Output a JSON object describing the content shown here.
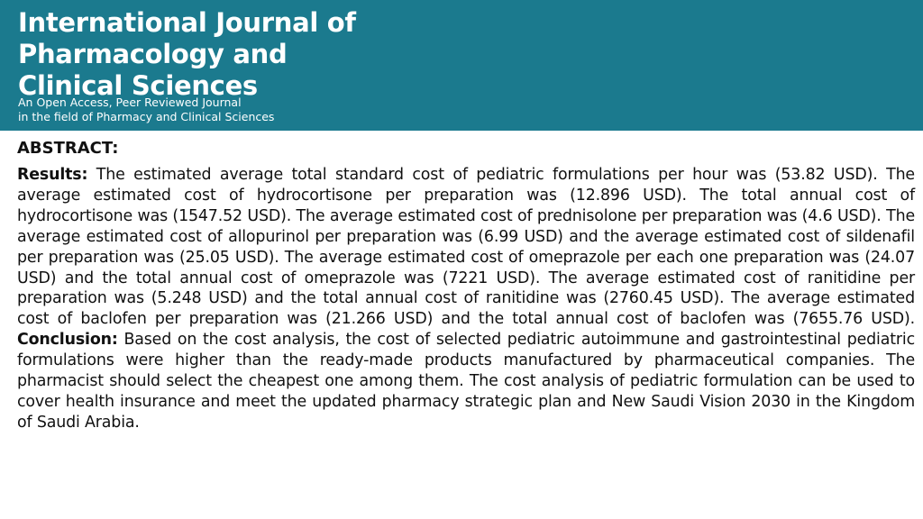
{
  "header": {
    "title_lines": [
      "International Journal of",
      "Pharmacology and",
      "Clinical Sciences"
    ],
    "tagline_lines": [
      "An Open Access, Peer Reviewed Journal",
      "in the field of Pharmacy and Clinical Sciences"
    ]
  },
  "abstract": {
    "heading": "ABSTRACT:",
    "results_label": "Results:",
    "results_text": " The estimated average total standard cost of pediatric formulations per hour was (53.82 USD). The average estimated cost of hydrocortisone per preparation was (12.896 USD). The total annual cost of hydrocortisone was (1547.52 USD). The average estimated cost of prednisolone per preparation was (4.6 USD). The average estimated cost of allopurinol per preparation was (6.99 USD) and the average estimated cost of sildenafil per preparation was (25.05 USD). The average estimated cost of omeprazole per each one preparation was (24.07 USD) and the total annual cost of omeprazole was (7221 USD). The average estimated cost of ranitidine per preparation was (5.248 USD) and the total annual cost of ranitidine was (2760.45 USD). The average estimated cost of baclofen per preparation was (21.266 USD) and the total annual cost of baclofen was (7655.76 USD). ",
    "conclusion_label": "Conclusion:",
    "conclusion_text": " Based on the cost analysis, the cost of selected pediatric autoimmune and gastrointestinal pediatric formulations were higher than the ready-made products manufactured by pharmaceutical companies. The pharmacist should select the cheapest one among them. The cost analysis of pediatric formulation can be used to cover health insurance and meet the updated pharmacy strategic plan and New Saudi Vision 2030 in the Kingdom of Saudi Arabia."
  }
}
